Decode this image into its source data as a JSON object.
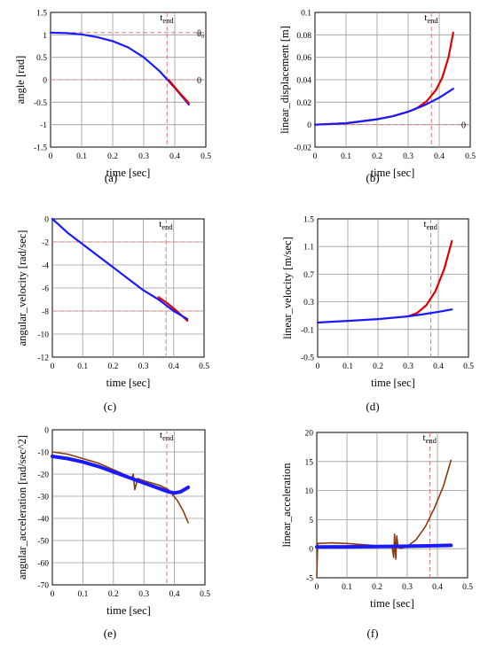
{
  "chart_data": [
    {
      "id": "a",
      "type": "line",
      "panel_label": "(a)",
      "xlabel": "time [sec]",
      "ylabel": "angle [rad]",
      "xlim": [
        0,
        0.5
      ],
      "ylim": [
        -1.5,
        1.5
      ],
      "xticks": [
        "0",
        "0.1",
        "0.2",
        "0.3",
        "0.4",
        "0.5"
      ],
      "yticks": [
        "1.5",
        "1",
        "0.5",
        "0",
        "-0.5",
        "-1",
        "-1.5"
      ],
      "grid": true,
      "annotations": [
        {
          "sub": "end",
          "base": "t",
          "x": 0.375
        },
        {
          "text": "θ₀",
          "y": 1.05
        },
        {
          "text": "0",
          "y": 0
        }
      ],
      "ref_lines": [
        {
          "axis": "x",
          "value": 0.375,
          "color": "#e07a7a"
        },
        {
          "axis": "y",
          "value": 1.05,
          "color": "#e07a7a"
        },
        {
          "axis": "y",
          "value": 0,
          "color": "#e07a7a"
        }
      ],
      "series": [
        {
          "color": "#1a1aff",
          "points": [
            [
              0,
              1.05
            ],
            [
              0.05,
              1.04
            ],
            [
              0.1,
              1.01
            ],
            [
              0.15,
              0.95
            ],
            [
              0.2,
              0.86
            ],
            [
              0.25,
              0.72
            ],
            [
              0.3,
              0.5
            ],
            [
              0.35,
              0.2
            ],
            [
              0.4,
              -0.18
            ],
            [
              0.445,
              -0.55
            ]
          ]
        },
        {
          "color": "#e00000",
          "points": [
            [
              0.38,
              0.0
            ],
            [
              0.41,
              -0.25
            ],
            [
              0.445,
              -0.52
            ]
          ]
        }
      ]
    },
    {
      "id": "b",
      "type": "line",
      "panel_label": "(b)",
      "xlabel": "time [sec]",
      "ylabel": "linear_displacement [m]",
      "xlim": [
        0,
        0.5
      ],
      "ylim": [
        -0.02,
        0.1
      ],
      "xticks": [
        "0",
        "0.1",
        "0.2",
        "0.3",
        "0.4",
        "0.5"
      ],
      "yticks": [
        "0.1",
        "0.08",
        "0.06",
        "0.04",
        "0.02",
        "0",
        "-0.02"
      ],
      "grid": true,
      "annotations": [
        {
          "sub": "end",
          "base": "t",
          "x": 0.375
        },
        {
          "text": "0",
          "y": 0
        }
      ],
      "ref_lines": [
        {
          "axis": "x",
          "value": 0.375,
          "color": "#e07a7a"
        },
        {
          "axis": "y",
          "value": 0,
          "color": "#e07a7a"
        }
      ],
      "series": [
        {
          "color": "#e00000",
          "points": [
            [
              0,
              0
            ],
            [
              0.1,
              0.0012
            ],
            [
              0.2,
              0.0048
            ],
            [
              0.25,
              0.0075
            ],
            [
              0.3,
              0.0115
            ],
            [
              0.33,
              0.015
            ],
            [
              0.36,
              0.021
            ],
            [
              0.39,
              0.031
            ],
            [
              0.41,
              0.042
            ],
            [
              0.43,
              0.06
            ],
            [
              0.445,
              0.082
            ]
          ]
        },
        {
          "color": "#1a1aff",
          "points": [
            [
              0,
              0
            ],
            [
              0.1,
              0.0012
            ],
            [
              0.2,
              0.0048
            ],
            [
              0.25,
              0.0075
            ],
            [
              0.3,
              0.0115
            ],
            [
              0.35,
              0.017
            ],
            [
              0.4,
              0.024
            ],
            [
              0.445,
              0.032
            ]
          ]
        }
      ]
    },
    {
      "id": "c",
      "type": "line",
      "panel_label": "(c)",
      "xlabel": "time [sec]",
      "ylabel": "angular_velocity [rad/sec]",
      "xlim": [
        0,
        0.5
      ],
      "ylim": [
        -12,
        0
      ],
      "xticks": [
        "0",
        "0.1",
        "0.2",
        "0.3",
        "0.4",
        "0.5"
      ],
      "yticks": [
        "0",
        "-2",
        "-4",
        "-6",
        "-8",
        "-10",
        "-12"
      ],
      "grid": true,
      "annotations": [
        {
          "sub": "end",
          "base": "t",
          "x": 0.375
        }
      ],
      "ref_lines": [
        {
          "axis": "x",
          "value": 0.375,
          "color": "#e07a7a"
        },
        {
          "axis": "y",
          "value": -2,
          "color": "#e07a7a"
        },
        {
          "axis": "y",
          "value": -8,
          "color": "#e07a7a"
        }
      ],
      "series": [
        {
          "color": "#e00000",
          "points": [
            [
              0.35,
              -6.8
            ],
            [
              0.38,
              -7.35
            ],
            [
              0.41,
              -8.0
            ],
            [
              0.445,
              -8.85
            ]
          ]
        },
        {
          "color": "#1a1aff",
          "points": [
            [
              0,
              0
            ],
            [
              0.05,
              -1.2
            ],
            [
              0.1,
              -2.2
            ],
            [
              0.15,
              -3.2
            ],
            [
              0.2,
              -4.2
            ],
            [
              0.25,
              -5.2
            ],
            [
              0.3,
              -6.2
            ],
            [
              0.35,
              -7.0
            ],
            [
              0.4,
              -8.0
            ],
            [
              0.445,
              -8.7
            ]
          ]
        }
      ]
    },
    {
      "id": "d",
      "type": "line",
      "panel_label": "(d)",
      "xlabel": "time [sec]",
      "ylabel": "linear_velocity [m/sec]",
      "xlim": [
        0,
        0.5
      ],
      "ylim": [
        -0.5,
        1.5
      ],
      "xticks": [
        "0",
        "0.1",
        "0.2",
        "0.3",
        "0.4",
        "0.5"
      ],
      "yticks": [
        "1.5",
        "1.1",
        "0.7",
        "0.3",
        "-0.1",
        "-0.5"
      ],
      "grid": true,
      "annotations": [
        {
          "sub": "end",
          "base": "t",
          "x": 0.375
        }
      ],
      "ref_lines": [
        {
          "axis": "x",
          "value": 0.375,
          "color": "#e07a7a"
        }
      ],
      "series": [
        {
          "color": "#e00000",
          "points": [
            [
              0.3,
              0.09
            ],
            [
              0.33,
              0.14
            ],
            [
              0.36,
              0.25
            ],
            [
              0.39,
              0.45
            ],
            [
              0.42,
              0.78
            ],
            [
              0.445,
              1.18
            ]
          ]
        },
        {
          "color": "#1a1aff",
          "points": [
            [
              0,
              0.0
            ],
            [
              0.1,
              0.025
            ],
            [
              0.2,
              0.05
            ],
            [
              0.3,
              0.09
            ],
            [
              0.35,
              0.12
            ],
            [
              0.4,
              0.155
            ],
            [
              0.445,
              0.19
            ]
          ]
        }
      ]
    },
    {
      "id": "e",
      "type": "line",
      "panel_label": "(e)",
      "xlabel": "time [sec]",
      "ylabel": "angular_acceleration [rad/sec^2]",
      "xlim": [
        0,
        0.5
      ],
      "ylim": [
        -70,
        0
      ],
      "xticks": [
        "0",
        "0.1",
        "0.2",
        "0.3",
        "0.4",
        "0.5"
      ],
      "yticks": [
        "0",
        "-10",
        "-20",
        "-30",
        "-40",
        "-50",
        "-60",
        "-70"
      ],
      "grid": true,
      "annotations": [
        {
          "sub": "end",
          "base": "t",
          "x": 0.375
        }
      ],
      "ref_lines": [
        {
          "axis": "x",
          "value": 0.375,
          "color": "#e07a7a"
        }
      ],
      "series": [
        {
          "color": "#8b3a0a",
          "width": 1.6,
          "points": [
            [
              0,
              -10
            ],
            [
              0.05,
              -11
            ],
            [
              0.1,
              -13
            ],
            [
              0.15,
              -15
            ],
            [
              0.2,
              -18
            ],
            [
              0.25,
              -21
            ],
            [
              0.26,
              -22
            ],
            [
              0.265,
              -20
            ],
            [
              0.27,
              -27
            ],
            [
              0.28,
              -22
            ],
            [
              0.3,
              -23
            ],
            [
              0.35,
              -25
            ],
            [
              0.38,
              -27
            ],
            [
              0.41,
              -32
            ],
            [
              0.43,
              -37
            ],
            [
              0.445,
              -42
            ]
          ]
        },
        {
          "color": "#1a1aff",
          "width": 4,
          "points": [
            [
              0,
              -12
            ],
            [
              0.05,
              -13
            ],
            [
              0.1,
              -14.5
            ],
            [
              0.15,
              -16.5
            ],
            [
              0.2,
              -19
            ],
            [
              0.25,
              -21.5
            ],
            [
              0.3,
              -24
            ],
            [
              0.35,
              -26.5
            ],
            [
              0.38,
              -28
            ],
            [
              0.4,
              -28.5
            ],
            [
              0.42,
              -28
            ],
            [
              0.445,
              -26
            ]
          ]
        }
      ]
    },
    {
      "id": "f",
      "type": "line",
      "panel_label": "(f)",
      "xlabel": "time [sec]",
      "ylabel": "linear_acceleration",
      "xlim": [
        0,
        0.5
      ],
      "ylim": [
        -5,
        20
      ],
      "xticks": [
        "0",
        "0.1",
        "0.2",
        "0.3",
        "0.4",
        "0.5"
      ],
      "yticks": [
        "20",
        "15",
        "10",
        "5",
        "0",
        "-5"
      ],
      "grid": true,
      "annotations": [
        {
          "sub": "end",
          "base": "t",
          "x": 0.375
        }
      ],
      "ref_lines": [
        {
          "axis": "x",
          "value": 0.375,
          "color": "#e07a7a"
        }
      ],
      "series": [
        {
          "color": "#8b3a0a",
          "width": 1.6,
          "points": [
            [
              0,
              -5
            ],
            [
              0.003,
              0.9
            ],
            [
              0.05,
              1.0
            ],
            [
              0.1,
              0.9
            ],
            [
              0.15,
              0.7
            ],
            [
              0.2,
              0.5
            ],
            [
              0.25,
              0.3
            ],
            [
              0.255,
              -1.5
            ],
            [
              0.258,
              2.5
            ],
            [
              0.262,
              -1.8
            ],
            [
              0.265,
              2.2
            ],
            [
              0.27,
              0.2
            ],
            [
              0.28,
              0.05
            ],
            [
              0.3,
              0.4
            ],
            [
              0.33,
              1.6
            ],
            [
              0.36,
              3.8
            ],
            [
              0.39,
              7.0
            ],
            [
              0.42,
              10.8
            ],
            [
              0.445,
              15.2
            ]
          ]
        },
        {
          "color": "#1a1aff",
          "width": 4,
          "points": [
            [
              0,
              0.3
            ],
            [
              0.1,
              0.32
            ],
            [
              0.2,
              0.36
            ],
            [
              0.3,
              0.42
            ],
            [
              0.4,
              0.52
            ],
            [
              0.445,
              0.58
            ]
          ]
        }
      ]
    }
  ]
}
